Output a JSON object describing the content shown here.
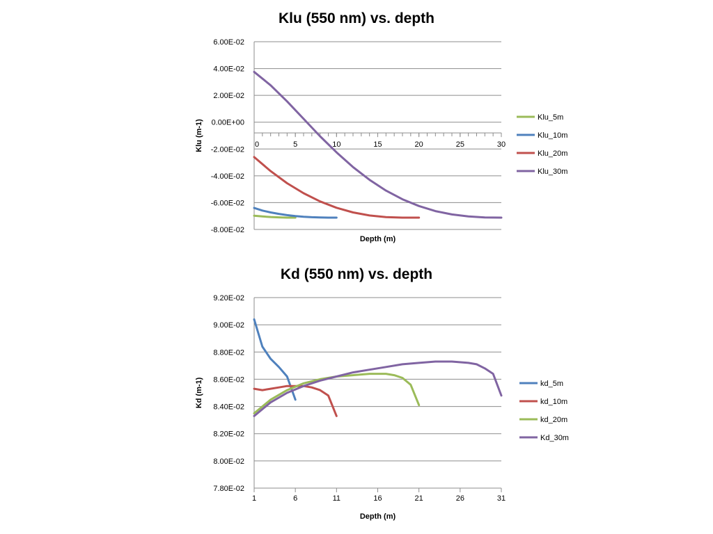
{
  "chart_data": [
    {
      "type": "line",
      "title": "Klu (550 nm) vs. depth",
      "xlabel": "Depth (m)",
      "ylabel": "Klu (m-1)",
      "xlim": [
        0,
        30
      ],
      "ylim": [
        -0.08,
        0.06
      ],
      "x_ticks": [
        "0",
        "5",
        "10",
        "15",
        "20",
        "25",
        "30"
      ],
      "y_ticks": [
        "6.00E-02",
        "4.00E-02",
        "2.00E-02",
        "0.00E+00",
        "-2.00E-02",
        "-4.00E-02",
        "-6.00E-02",
        "-8.00E-02"
      ],
      "grid": true,
      "legend": "right",
      "series": [
        {
          "name": "Klu_5m",
          "color": "#9bbb59",
          "x": [
            0,
            1,
            2,
            3,
            4,
            5
          ],
          "y": [
            -0.0698,
            -0.0703,
            -0.0707,
            -0.071,
            -0.0712,
            -0.0712
          ]
        },
        {
          "name": "Klu_10m",
          "color": "#4f81bd",
          "x": [
            0,
            1,
            2,
            3,
            4,
            5,
            6,
            7,
            8,
            9,
            10
          ],
          "y": [
            -0.064,
            -0.0659,
            -0.0673,
            -0.0684,
            -0.0693,
            -0.07,
            -0.0705,
            -0.0709,
            -0.0711,
            -0.0712,
            -0.0712
          ]
        },
        {
          "name": "Klu_20m",
          "color": "#c0504d",
          "x": [
            0,
            2,
            4,
            6,
            8,
            10,
            12,
            14,
            16,
            18,
            20
          ],
          "y": [
            -0.026,
            -0.0365,
            -0.0455,
            -0.053,
            -0.0591,
            -0.0638,
            -0.0673,
            -0.0696,
            -0.0708,
            -0.0712,
            -0.0712
          ]
        },
        {
          "name": "Klu_30m",
          "color": "#8064a2",
          "x": [
            0,
            2,
            4,
            6,
            8,
            10,
            12,
            14,
            16,
            18,
            20,
            22,
            24,
            26,
            28,
            30
          ],
          "y": [
            0.0375,
            0.0275,
            0.0155,
            0.0025,
            -0.0105,
            -0.0225,
            -0.0335,
            -0.043,
            -0.051,
            -0.0575,
            -0.0625,
            -0.0663,
            -0.0688,
            -0.0703,
            -0.0711,
            -0.0712
          ]
        }
      ]
    },
    {
      "type": "line",
      "title": "Kd (550 nm) vs. depth",
      "xlabel": "Depth (m)",
      "ylabel": "Kd (m-1)",
      "xlim": [
        1,
        31
      ],
      "ylim": [
        0.078,
        0.092
      ],
      "x_ticks": [
        "1",
        "6",
        "11",
        "16",
        "21",
        "26",
        "31"
      ],
      "y_ticks": [
        "9.20E-02",
        "9.00E-02",
        "8.80E-02",
        "8.60E-02",
        "8.40E-02",
        "8.20E-02",
        "8.00E-02",
        "7.80E-02"
      ],
      "grid": true,
      "legend": "right",
      "series": [
        {
          "name": "kd_5m",
          "color": "#4f81bd",
          "x": [
            1,
            2,
            3,
            4,
            5,
            6
          ],
          "y": [
            0.0904,
            0.0884,
            0.0875,
            0.0869,
            0.0862,
            0.0845
          ]
        },
        {
          "name": "kd_10m",
          "color": "#c0504d",
          "x": [
            1,
            2,
            3,
            4,
            5,
            6,
            7,
            8,
            9,
            10,
            11
          ],
          "y": [
            0.0853,
            0.0852,
            0.0853,
            0.0854,
            0.0855,
            0.0855,
            0.0855,
            0.0854,
            0.0852,
            0.0848,
            0.0833
          ]
        },
        {
          "name": "kd_20m",
          "color": "#9bbb59",
          "x": [
            1,
            3,
            5,
            7,
            9,
            11,
            13,
            15,
            16,
            17,
            18,
            19,
            20,
            21
          ],
          "y": [
            0.0835,
            0.0845,
            0.0852,
            0.0857,
            0.086,
            0.0862,
            0.0863,
            0.0864,
            0.0864,
            0.0864,
            0.0863,
            0.0861,
            0.0856,
            0.0841
          ]
        },
        {
          "name": "Kd_30m",
          "color": "#8064a2",
          "x": [
            1,
            3,
            5,
            7,
            9,
            11,
            13,
            15,
            17,
            19,
            21,
            23,
            25,
            27,
            28,
            29,
            30,
            31
          ],
          "y": [
            0.0833,
            0.0843,
            0.085,
            0.0855,
            0.0859,
            0.0862,
            0.0865,
            0.0867,
            0.0869,
            0.0871,
            0.0872,
            0.0873,
            0.0873,
            0.0872,
            0.0871,
            0.0868,
            0.0864,
            0.0848
          ]
        }
      ]
    }
  ]
}
